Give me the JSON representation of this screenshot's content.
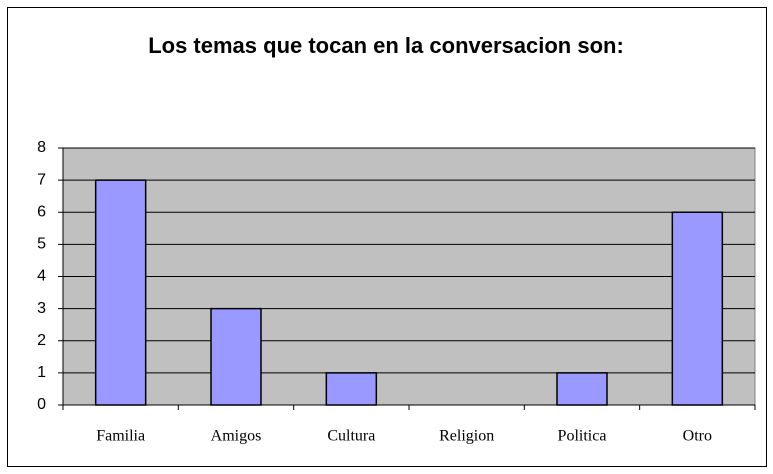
{
  "chart_data": {
    "type": "bar",
    "title": "Los temas que tocan en la conversacion son:",
    "categories": [
      "Familia",
      "Amigos",
      "Cultura",
      "Religion",
      "Politica",
      "Otro"
    ],
    "values": [
      7,
      3,
      1,
      0,
      1,
      6
    ],
    "color": "#9999ff",
    "ylim": [
      0,
      8
    ],
    "yticks": [
      0,
      1,
      2,
      3,
      4,
      5,
      6,
      7,
      8
    ],
    "grid": true
  }
}
